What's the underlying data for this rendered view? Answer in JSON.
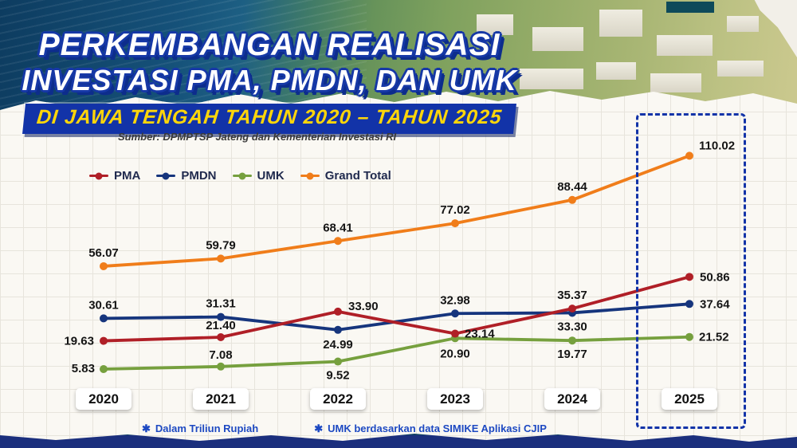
{
  "title": {
    "line1": "PERKEMBANGAN REALISASI",
    "line2": "INVESTASI PMA, PMDN, DAN UMK",
    "line3": "DI JAWA TENGAH TAHUN 2020 – TAHUN 2025",
    "source": "Sumber: DPMPTSP Jateng dan Kementerian Investasi RI"
  },
  "chart_data": {
    "type": "line",
    "title": "Perkembangan Realisasi Investasi PMA, PMDN, dan UMK di Jawa Tengah Tahun 2020 – Tahun 2025",
    "unit": "Triliun Rupiah",
    "categories": [
      "2020",
      "2021",
      "2022",
      "2023",
      "2024",
      "2025"
    ],
    "series": [
      {
        "name": "PMA",
        "color": "#b01f27",
        "values": [
          19.63,
          21.4,
          33.9,
          23.14,
          35.37,
          50.86
        ]
      },
      {
        "name": "PMDN",
        "color": "#16357d",
        "values": [
          30.61,
          31.31,
          24.99,
          32.98,
          33.3,
          37.64
        ]
      },
      {
        "name": "UMK",
        "color": "#76a03e",
        "values": [
          5.83,
          7.08,
          9.52,
          20.9,
          19.77,
          21.52
        ]
      },
      {
        "name": "Grand Total",
        "color": "#f07d1a",
        "values": [
          56.07,
          59.79,
          68.41,
          77.02,
          88.44,
          110.02
        ]
      }
    ],
    "ylim": [
      0,
      116
    ],
    "grid": false,
    "legend_position": "top-left",
    "data_labels": true,
    "highlight_category": "2025"
  },
  "footnotes": [
    {
      "marker": "✱",
      "text": "Dalam Triliun Rupiah"
    },
    {
      "marker": "✱",
      "text": "UMK berdasarkan data SIMIKE Aplikasi CJIP"
    }
  ],
  "theme": {
    "title_fill": "#ffffff",
    "title_outline": "#1638a6",
    "badge_bg": "#1233a8",
    "badge_text": "#ffd60a",
    "highlight_border": "#1233a8",
    "footnote_color": "#1d49c2",
    "paper_bg": "#faf8f3"
  }
}
